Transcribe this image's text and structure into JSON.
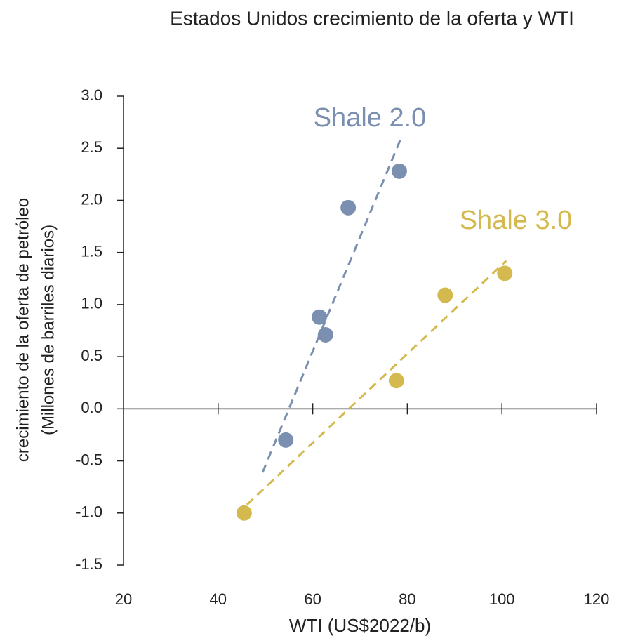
{
  "chart_data": {
    "type": "scatter",
    "title": "Estados Unidos crecimiento de la oferta y WTI",
    "xlabel": "WTI (US$2022/b)",
    "ylabel": [
      "crecimiento de la oferta de petróleo",
      "(Millones de barriles diarios)"
    ],
    "xlim": [
      20,
      120
    ],
    "xticks": [
      20,
      40,
      60,
      80,
      100,
      120
    ],
    "ylim": [
      -1.5,
      3.0
    ],
    "yticks": [
      {
        "value": 3.0,
        "label": "3.0"
      },
      {
        "value": 2.5,
        "label": "2.5"
      },
      {
        "value": 2.0,
        "label": "2.0"
      },
      {
        "value": 1.5,
        "label": "1.5"
      },
      {
        "value": 1.0,
        "label": "1.0"
      },
      {
        "value": 0.5,
        "label": "0.5"
      },
      {
        "value": 0.0,
        "label": "0.0"
      },
      {
        "value": -0.5,
        "label": "-0.5"
      },
      {
        "value": -1.0,
        "label": "-1.0"
      },
      {
        "value": -1.5,
        "label": "-1.5"
      }
    ],
    "series": [
      {
        "name": "Shale 2.0",
        "color": "#7b8fb0",
        "x": [
          54.3,
          61.4,
          62.7,
          67.5,
          78.3
        ],
        "values": [
          -0.3,
          0.88,
          0.71,
          1.93,
          2.28
        ],
        "trendline": {
          "x": [
            49.4,
            78.6
          ],
          "values": [
            -0.61,
            2.59
          ]
        }
      },
      {
        "name": "Shale 3.0",
        "color": "#d4b94e",
        "x": [
          45.5,
          77.7,
          88.0,
          100.6
        ],
        "values": [
          -1.0,
          0.27,
          1.09,
          1.3
        ],
        "trendline": {
          "x": [
            46.1,
            100.9
          ],
          "values": [
            -0.92,
            1.42
          ]
        }
      }
    ]
  }
}
